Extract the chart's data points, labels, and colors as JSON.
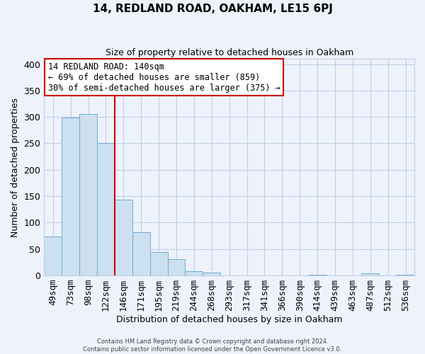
{
  "title": "14, REDLAND ROAD, OAKHAM, LE15 6PJ",
  "subtitle": "Size of property relative to detached houses in Oakham",
  "xlabel": "Distribution of detached houses by size in Oakham",
  "ylabel": "Number of detached properties",
  "bin_labels": [
    "49sqm",
    "73sqm",
    "98sqm",
    "122sqm",
    "146sqm",
    "171sqm",
    "195sqm",
    "219sqm",
    "244sqm",
    "268sqm",
    "293sqm",
    "317sqm",
    "341sqm",
    "366sqm",
    "390sqm",
    "414sqm",
    "439sqm",
    "463sqm",
    "487sqm",
    "512sqm",
    "536sqm"
  ],
  "bar_heights": [
    74,
    299,
    305,
    250,
    144,
    82,
    44,
    31,
    8,
    6,
    0,
    0,
    0,
    0,
    0,
    2,
    0,
    0,
    4,
    0,
    2
  ],
  "bar_color": "#cce0f0",
  "bar_edge_color": "#6baed6",
  "vline_color": "#cc0000",
  "annotation_title": "14 REDLAND ROAD: 140sqm",
  "annotation_line1": "← 69% of detached houses are smaller (859)",
  "annotation_line2": "30% of semi-detached houses are larger (375) →",
  "annotation_box_color": "white",
  "annotation_box_edge_color": "#cc0000",
  "ylim": [
    0,
    410
  ],
  "yticks": [
    0,
    50,
    100,
    150,
    200,
    250,
    300,
    350,
    400
  ],
  "footer_line1": "Contains HM Land Registry data © Crown copyright and database right 2024.",
  "footer_line2": "Contains public sector information licensed under the Open Government Licence v3.0.",
  "background_color": "#eef2fb",
  "grid_color": "#c0cfe8",
  "title_fontsize": 11,
  "subtitle_fontsize": 9
}
